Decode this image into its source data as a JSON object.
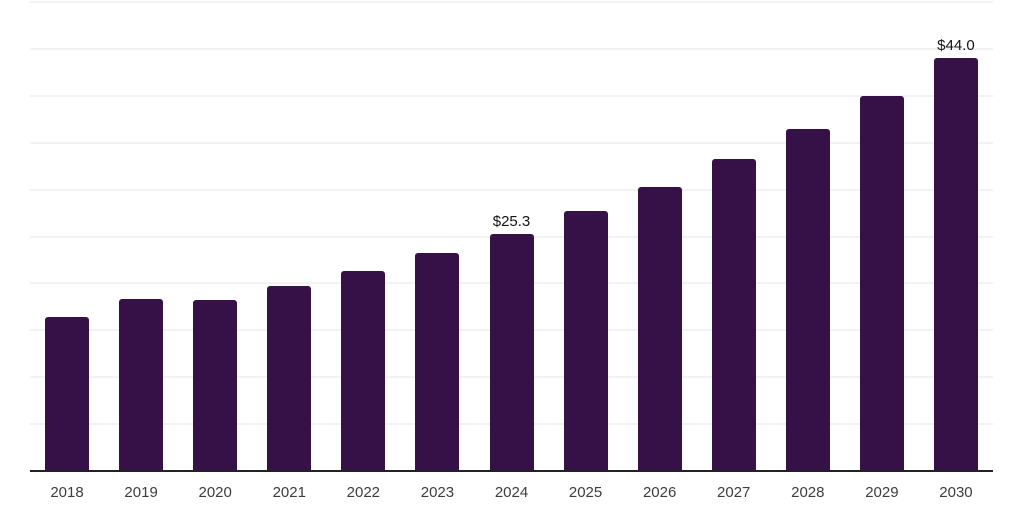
{
  "chart_data": {
    "type": "bar",
    "title": "",
    "xlabel": "",
    "ylabel": "",
    "categories": [
      "2018",
      "2019",
      "2020",
      "2021",
      "2022",
      "2023",
      "2024",
      "2025",
      "2026",
      "2027",
      "2028",
      "2029",
      "2030"
    ],
    "values": [
      16.4,
      18.3,
      18.2,
      19.7,
      21.3,
      23.2,
      25.3,
      27.7,
      30.3,
      33.3,
      36.5,
      40.0,
      44.0
    ],
    "bar_labels": [
      "",
      "",
      "",
      "",
      "",
      "",
      "$25.3",
      "",
      "",
      "",
      "",
      "",
      "$44.0"
    ],
    "ylim": [
      0,
      50
    ],
    "gridline_step": 5,
    "grid": true,
    "legend": false,
    "y_tick_labels_visible": false,
    "colors": {
      "bar": "#351148",
      "gridline": "#f2f2f2",
      "axis_line": "#222222",
      "value_label": "#141414",
      "tick_label": "#3d3d3d",
      "background": "#ffffff"
    }
  }
}
